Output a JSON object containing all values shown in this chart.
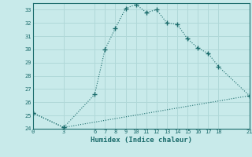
{
  "xlabel": "Humidex (Indice chaleur)",
  "bg_color": "#c8eaea",
  "grid_color": "#b0d8d8",
  "line_color": "#1a6b6b",
  "xlim": [
    0,
    21
  ],
  "ylim": [
    24,
    33.5
  ],
  "yticks": [
    24,
    25,
    26,
    27,
    28,
    29,
    30,
    31,
    32,
    33
  ],
  "xticks": [
    0,
    3,
    6,
    7,
    8,
    9,
    10,
    11,
    12,
    13,
    14,
    15,
    16,
    17,
    18,
    21
  ],
  "line1_x": [
    0,
    3,
    6,
    7,
    8,
    9,
    10,
    11,
    12,
    13,
    14,
    15,
    16,
    17,
    18,
    21
  ],
  "line1_y": [
    25.2,
    24.1,
    26.6,
    30.0,
    31.6,
    33.1,
    33.4,
    32.8,
    33.0,
    32.0,
    31.9,
    30.8,
    30.1,
    29.7,
    28.7,
    26.5
  ],
  "line2_x": [
    0,
    3,
    21
  ],
  "line2_y": [
    25.2,
    24.1,
    26.5
  ]
}
